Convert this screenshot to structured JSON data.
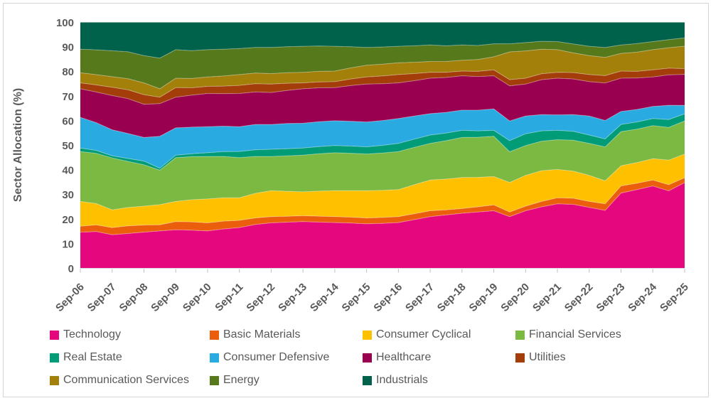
{
  "figure": {
    "background_color": "#FFFFFF",
    "border_color": "#D5D5D5"
  },
  "chart_data": {
    "type": "area",
    "stacked": true,
    "normalized_to_100": true,
    "title": "",
    "xlabel": "",
    "ylabel": "Sector Allocation (%)",
    "ylim": [
      0,
      100
    ],
    "y_ticks": [
      0,
      10,
      20,
      30,
      40,
      50,
      60,
      70,
      80,
      90,
      100
    ],
    "grid": false,
    "legend_position": "bottom",
    "style": {
      "axis_text_color": "#595959",
      "tick_mark_color": "#BFBFBF",
      "baseline_color": "#D9D9D9",
      "band_separator": "rgba(255,255,255,0.35)"
    },
    "x": [
      "Sep-06",
      "Mar-07",
      "Sep-07",
      "Mar-08",
      "Sep-08",
      "Mar-09",
      "Sep-09",
      "Mar-10",
      "Sep-10",
      "Mar-11",
      "Sep-11",
      "Mar-12",
      "Sep-12",
      "Mar-13",
      "Sep-13",
      "Mar-14",
      "Sep-14",
      "Mar-15",
      "Sep-15",
      "Mar-16",
      "Sep-16",
      "Mar-17",
      "Sep-17",
      "Mar-18",
      "Sep-18",
      "Mar-19",
      "Sep-19",
      "Mar-20",
      "Sep-20",
      "Mar-21",
      "Sep-21",
      "Mar-22",
      "Sep-22",
      "Mar-23",
      "Sep-23",
      "Mar-24",
      "Sep-24",
      "Mar-25",
      "Sep-25"
    ],
    "x_tick_labels": [
      "Sep-06",
      "Sep-07",
      "Sep-08",
      "Sep-09",
      "Sep-10",
      "Sep-11",
      "Sep-12",
      "Sep-13",
      "Sep-14",
      "Sep-15",
      "Sep-16",
      "Sep-17",
      "Sep-18",
      "Sep-19",
      "Sep-20",
      "Sep-21",
      "Sep-22",
      "Sep-23",
      "Sep-24",
      "Sep-25"
    ],
    "series": [
      {
        "name": "Technology",
        "color": "#E5077E",
        "values": [
          14.7,
          15.0,
          13.7,
          14.2,
          14.7,
          15.2,
          15.7,
          15.5,
          15.2,
          16.0,
          16.6,
          17.8,
          18.5,
          18.8,
          19.0,
          18.8,
          18.6,
          18.4,
          18.1,
          18.3,
          18.6,
          19.8,
          21.0,
          21.7,
          22.4,
          22.9,
          23.4,
          21.0,
          23.4,
          25.0,
          26.2,
          26.0,
          24.8,
          23.5,
          30.6,
          32.0,
          33.5,
          31.5,
          34.9
        ]
      },
      {
        "name": "Basic Materials",
        "color": "#EB5E0C",
        "values": [
          2.4,
          2.7,
          2.9,
          3.1,
          2.9,
          2.5,
          3.3,
          3.4,
          3.3,
          3.2,
          2.9,
          2.7,
          2.5,
          2.4,
          2.4,
          2.4,
          2.4,
          2.4,
          2.4,
          2.4,
          2.4,
          2.4,
          2.4,
          2.1,
          1.9,
          2.1,
          2.4,
          1.9,
          1.9,
          2.2,
          2.5,
          2.5,
          2.4,
          2.7,
          2.9,
          2.6,
          2.4,
          2.5,
          2.0
        ]
      },
      {
        "name": "Consumer Cyclical",
        "color": "#FFC000",
        "values": [
          10.1,
          8.7,
          7.3,
          7.5,
          7.7,
          8.2,
          8.2,
          9.0,
          9.7,
          9.5,
          9.2,
          10.0,
          10.6,
          10.2,
          9.7,
          10.2,
          10.6,
          10.8,
          11.1,
          11.0,
          11.0,
          11.8,
          12.5,
          12.5,
          12.6,
          12.0,
          11.5,
          12.0,
          12.5,
          12.5,
          11.5,
          11.0,
          10.6,
          9.3,
          8.2,
          8.4,
          8.7,
          10.0,
          9.6
        ]
      },
      {
        "name": "Financial Services",
        "color": "#7CB942",
        "values": [
          20.3,
          20.5,
          21.2,
          18.8,
          16.8,
          14.0,
          17.8,
          17.5,
          17.3,
          16.8,
          16.3,
          15.0,
          13.9,
          14.4,
          14.9,
          15.2,
          15.4,
          15.2,
          14.9,
          15.2,
          15.5,
          15.2,
          14.9,
          15.6,
          16.3,
          16.3,
          16.4,
          12.5,
          12.1,
          12.0,
          12.1,
          12.6,
          13.0,
          13.8,
          13.9,
          13.6,
          13.4,
          13.3,
          13.5
        ]
      },
      {
        "name": "Real Estate",
        "color": "#009C77",
        "values": [
          1.4,
          1.2,
          0.9,
          1.2,
          1.5,
          0.8,
          1.0,
          1.2,
          1.5,
          2.0,
          2.5,
          2.7,
          2.9,
          2.9,
          2.9,
          2.9,
          2.9,
          2.9,
          2.9,
          3.1,
          3.3,
          3.3,
          3.4,
          3.1,
          2.9,
          2.6,
          2.4,
          4.5,
          4.8,
          4.2,
          3.8,
          3.6,
          3.4,
          3.2,
          2.9,
          2.9,
          2.9,
          3.2,
          2.9
        ]
      },
      {
        "name": "Consumer Defensive",
        "color": "#29ABE2",
        "values": [
          12.5,
          11.3,
          10.6,
          10.2,
          9.6,
          13.0,
          11.1,
          10.8,
          10.6,
          10.3,
          10.1,
          10.3,
          10.1,
          10.3,
          10.1,
          10.1,
          10.1,
          10.1,
          10.1,
          10.1,
          10.1,
          9.4,
          8.7,
          8.4,
          8.2,
          8.4,
          8.7,
          8.0,
          7.2,
          6.6,
          6.3,
          6.8,
          7.7,
          7.5,
          5.3,
          5.1,
          4.9,
          5.8,
          3.4
        ]
      },
      {
        "name": "Healthcare",
        "color": "#99004F",
        "values": [
          11.6,
          12.5,
          14.0,
          14.2,
          13.5,
          13.3,
          12.5,
          13.0,
          13.5,
          13.2,
          13.5,
          13.2,
          13.0,
          13.5,
          14.0,
          13.8,
          13.5,
          14.5,
          15.4,
          15.0,
          14.5,
          14.4,
          14.4,
          14.2,
          14.0,
          13.7,
          13.5,
          14.3,
          13.0,
          14.2,
          14.9,
          14.5,
          14.0,
          15.2,
          13.5,
          12.8,
          12.0,
          12.4,
          12.6
        ]
      },
      {
        "name": "Utilities",
        "color": "#A33E0B",
        "values": [
          2.4,
          2.9,
          3.4,
          3.6,
          3.9,
          2.6,
          3.9,
          3.0,
          2.9,
          3.1,
          3.3,
          3.4,
          3.4,
          2.9,
          2.4,
          2.4,
          2.4,
          2.7,
          2.9,
          3.1,
          3.4,
          2.9,
          2.4,
          2.1,
          1.9,
          2.1,
          2.4,
          2.5,
          2.4,
          2.4,
          2.4,
          2.6,
          2.9,
          3.0,
          2.9,
          2.7,
          2.9,
          2.7,
          2.4
        ]
      },
      {
        "name": "Communication Services",
        "color": "#A3800A",
        "values": [
          4.1,
          4.2,
          4.3,
          4.5,
          4.8,
          3.4,
          3.8,
          3.8,
          3.8,
          4.1,
          4.4,
          4.3,
          4.3,
          4.3,
          4.3,
          4.3,
          4.3,
          4.5,
          4.8,
          4.8,
          4.8,
          4.6,
          4.4,
          4.4,
          4.4,
          4.8,
          5.3,
          11.3,
          11.1,
          10.0,
          9.2,
          8.0,
          7.7,
          7.4,
          7.2,
          7.8,
          8.2,
          8.3,
          9.1
        ]
      },
      {
        "name": "Energy",
        "color": "#56791B",
        "values": [
          9.6,
          10.1,
          10.6,
          11.0,
          11.1,
          12.5,
          11.6,
          11.3,
          11.1,
          10.9,
          10.6,
          10.4,
          10.6,
          10.6,
          10.6,
          10.3,
          10.1,
          8.6,
          7.2,
          7.0,
          6.7,
          6.7,
          6.7,
          6.4,
          6.2,
          5.7,
          5.3,
          3.3,
          3.4,
          3.2,
          3.3,
          3.6,
          3.8,
          4.0,
          3.4,
          3.5,
          3.3,
          3.3,
          3.4
        ]
      },
      {
        "name": "Industrials",
        "color": "#00624A",
        "values": [
          10.9,
          11.2,
          11.6,
          12.0,
          13.5,
          14.5,
          11.1,
          11.5,
          11.1,
          10.9,
          10.6,
          10.2,
          10.2,
          9.9,
          9.7,
          9.6,
          9.7,
          9.9,
          10.2,
          10.0,
          9.7,
          9.5,
          9.2,
          9.5,
          9.2,
          9.4,
          8.7,
          8.7,
          8.2,
          7.7,
          7.8,
          8.8,
          9.7,
          10.2,
          9.2,
          8.6,
          7.8,
          7.0,
          6.3
        ]
      }
    ]
  }
}
